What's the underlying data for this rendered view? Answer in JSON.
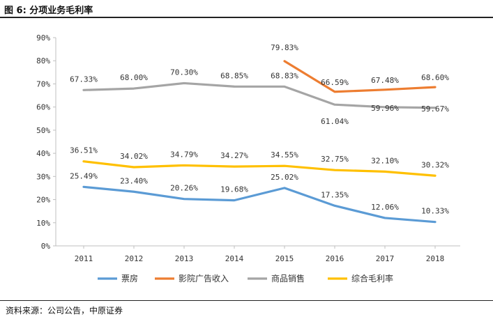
{
  "header": {
    "title": "图 6: 分项业务毛利率"
  },
  "footer": {
    "source": "资料来源：公司公告，中原证券"
  },
  "chart_data": {
    "type": "line",
    "title": "分项业务毛利率",
    "categories": [
      "2011",
      "2012",
      "2013",
      "2014",
      "2015",
      "2016",
      "2017",
      "2018"
    ],
    "ylim": [
      0,
      90
    ],
    "yticks": [
      0,
      10,
      20,
      30,
      40,
      50,
      60,
      70,
      80,
      90
    ],
    "ytick_labels": [
      "0%",
      "10%",
      "20%",
      "30%",
      "40%",
      "50%",
      "60%",
      "70%",
      "80%",
      "90%"
    ],
    "grid": true,
    "legend_position": "bottom",
    "series": [
      {
        "name": "票房",
        "color": "#5b9bd5",
        "values": [
          25.49,
          23.4,
          20.26,
          19.68,
          25.02,
          17.35,
          12.06,
          10.33
        ],
        "labels": [
          "25.49%",
          "23.40%",
          "20.26%",
          "19.68%",
          "25.02%",
          "17.35%",
          "12.06%",
          "10.33%"
        ]
      },
      {
        "name": "影院广告收入",
        "color": "#ed7d31",
        "values": [
          null,
          null,
          null,
          null,
          79.83,
          66.59,
          67.48,
          68.6
        ],
        "labels": [
          null,
          null,
          null,
          null,
          "79.83%",
          "66.59%",
          "67.48%",
          "68.60%"
        ]
      },
      {
        "name": "商品销售",
        "color": "#a5a5a5",
        "values": [
          67.33,
          68.0,
          70.3,
          68.85,
          68.83,
          61.04,
          59.96,
          59.67
        ],
        "labels": [
          "67.33%",
          "68.00%",
          "70.30%",
          "68.85%",
          "68.83%",
          "61.04%",
          "59.96%",
          "59.67%"
        ]
      },
      {
        "name": "综合毛利率",
        "color": "#ffc000",
        "values": [
          36.51,
          34.02,
          34.79,
          34.27,
          34.55,
          32.75,
          32.1,
          30.32
        ],
        "labels": [
          "36.51%",
          "34.02%",
          "34.79%",
          "34.27%",
          "34.55%",
          "32.75%",
          "32.10%",
          "30.32%"
        ]
      }
    ]
  }
}
